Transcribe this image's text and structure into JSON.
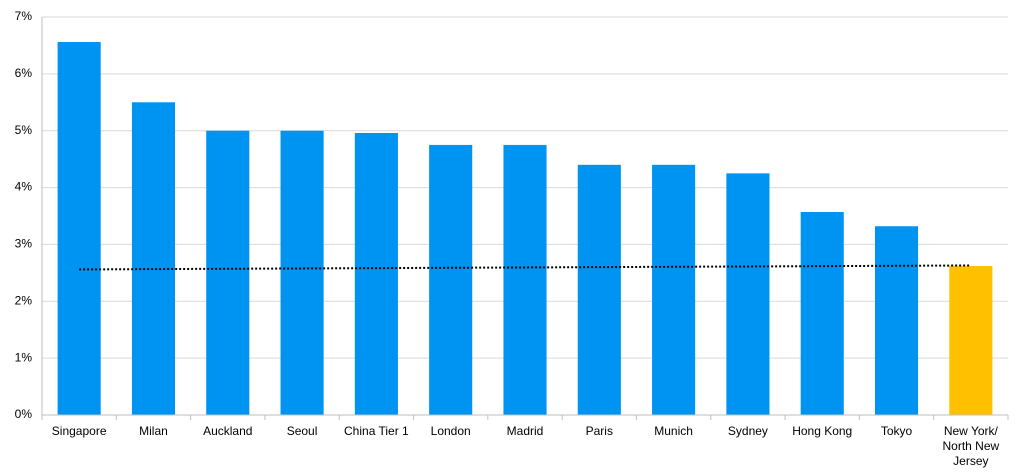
{
  "chart_data": {
    "type": "bar",
    "categories": [
      "Singapore",
      "Milan",
      "Auckland",
      "Seoul",
      "China Tier 1",
      "London",
      "Madrid",
      "Paris",
      "Munich",
      "Sydney",
      "Hong Kong",
      "Tokyo",
      "New York/ North New Jersey"
    ],
    "values": [
      6.56,
      5.5,
      5.0,
      5.0,
      4.96,
      4.75,
      4.75,
      4.4,
      4.4,
      4.25,
      3.57,
      3.32,
      2.62
    ],
    "colors": [
      "#0094f2",
      "#0094f2",
      "#0094f2",
      "#0094f2",
      "#0094f2",
      "#0094f2",
      "#0094f2",
      "#0094f2",
      "#0094f2",
      "#0094f2",
      "#0094f2",
      "#0094f2",
      "#ffc000"
    ],
    "trend_line": {
      "values": [
        2.56,
        2.63
      ],
      "color": "#000000"
    },
    "ylim": [
      0,
      7
    ],
    "yticks": [
      {
        "value": 0,
        "label": "0%"
      },
      {
        "value": 1,
        "label": "1%"
      },
      {
        "value": 2,
        "label": "2%"
      },
      {
        "value": 3,
        "label": "3%"
      },
      {
        "value": 4,
        "label": "4%"
      },
      {
        "value": 5,
        "label": "5%"
      },
      {
        "value": 6,
        "label": "6%"
      },
      {
        "value": 7,
        "label": "7%"
      }
    ],
    "grid": true
  }
}
